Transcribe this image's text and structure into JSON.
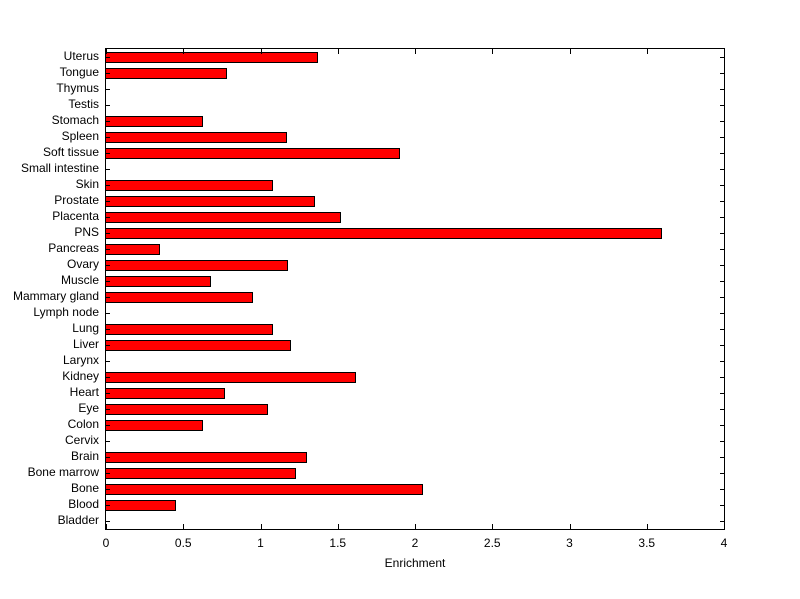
{
  "chart_data": {
    "type": "bar",
    "orientation": "horizontal",
    "title": "",
    "xlabel": "Enrichment",
    "ylabel": "",
    "xlim": [
      0,
      4
    ],
    "xticks": [
      0,
      0.5,
      1,
      1.5,
      2,
      2.5,
      3,
      3.5,
      4
    ],
    "xtick_labels": [
      "0",
      "0.5",
      "1",
      "1.5",
      "2",
      "2.5",
      "3",
      "3.5",
      "4"
    ],
    "grid": false,
    "legend": "none",
    "bar_color": "#ff0000",
    "bar_edge_color": "#000000",
    "categories": [
      "Uterus",
      "Tongue",
      "Thymus",
      "Testis",
      "Stomach",
      "Spleen",
      "Soft tissue",
      "Small intestine",
      "Skin",
      "Prostate",
      "Placenta",
      "PNS",
      "Pancreas",
      "Ovary",
      "Muscle",
      "Mammary gland",
      "Lymph node",
      "Lung",
      "Liver",
      "Larynx",
      "Kidney",
      "Heart",
      "Eye",
      "Colon",
      "Cervix",
      "Brain",
      "Bone marrow",
      "Bone",
      "Blood",
      "Bladder"
    ],
    "values": [
      1.37,
      0.78,
      0,
      0,
      0.63,
      1.17,
      1.9,
      0,
      1.08,
      1.35,
      1.52,
      3.6,
      0.35,
      1.18,
      0.68,
      0.95,
      0,
      1.08,
      1.2,
      0,
      1.62,
      0.77,
      1.05,
      0.63,
      0,
      1.3,
      1.23,
      2.05,
      0.45,
      0
    ]
  }
}
